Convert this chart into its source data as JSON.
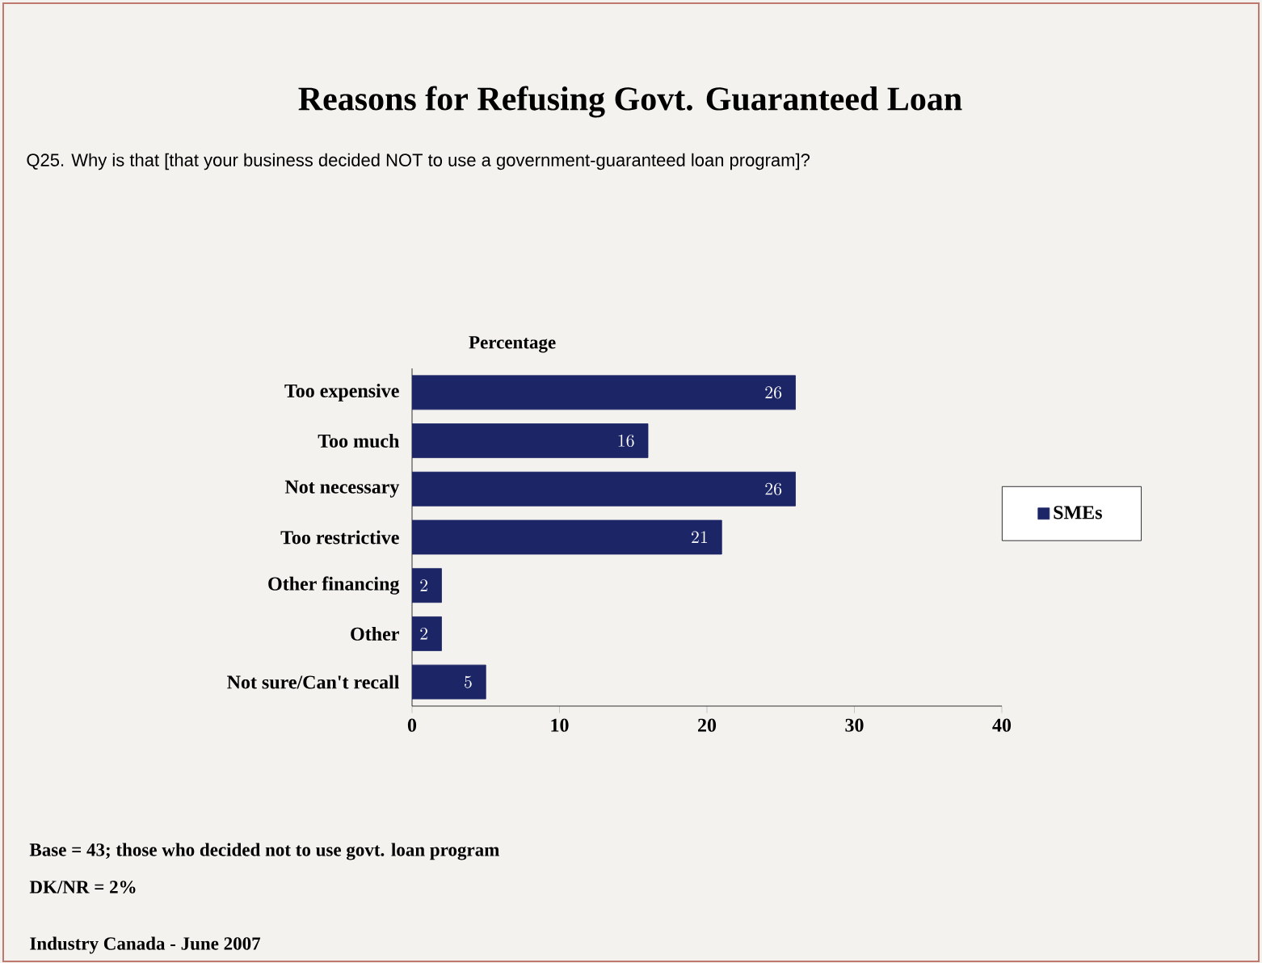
{
  "chart_data": {
    "type": "bar",
    "orientation": "horizontal",
    "title": "Reasons for Refusing Govt. Guaranteed Loan",
    "subtitle": "Q25. Why is that [that your business decided NOT to use a government-guaranteed loan program]?",
    "xlabel": "Percentage",
    "categories": [
      "Too expensive",
      "Too much",
      "Not necessary",
      "Too restrictive",
      "Other financing",
      "Other",
      "Not sure/Can't recall"
    ],
    "series": [
      {
        "name": "SMEs",
        "color": "#1c2566",
        "values": [
          26,
          16,
          26,
          21,
          2,
          2,
          5
        ]
      }
    ],
    "xlim": [
      0,
      40
    ],
    "xticks": [
      0,
      10,
      20,
      30,
      40
    ],
    "data_labels": true,
    "legend": "right",
    "annotations": [
      "Base = 43; those who decided not to use govt. loan program",
      "DK/NR = 2%",
      "Industry Canada - June 2007"
    ]
  }
}
